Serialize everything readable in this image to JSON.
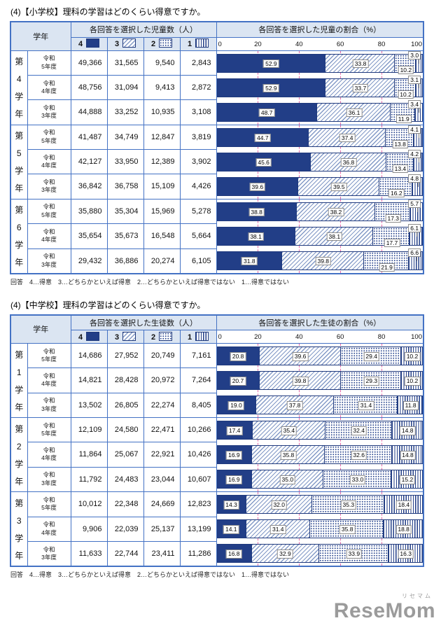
{
  "page": {
    "axis_ticks": [
      "0",
      "20",
      "40",
      "60",
      "80",
      "100"
    ]
  },
  "logo": {
    "kana": "リセマム",
    "text": "ReseMom"
  },
  "colors": {
    "border": "#4472c4",
    "header_bg": "#dbe5f2",
    "navy": "#223e87",
    "gridline": "#e468a8"
  },
  "tables": [
    {
      "title": "(4)【小学校】理科の学習はどのくらい得意ですか。",
      "footnote": "回答　4…得意　3…どちらかといえば得意　2…どちらかといえば得意ではない　1…得意ではない",
      "header": {
        "grade": "学年",
        "counts": "各回答を選択した児童数（人）",
        "percent": "各回答を選択した児童の割合（%）",
        "options": [
          "4",
          "3",
          "2",
          "1"
        ]
      },
      "groups": [
        {
          "grade_chars": [
            "第",
            "4",
            "学",
            "年"
          ],
          "rows": [
            {
              "year": [
                "令和",
                "5年度"
              ],
              "counts": [
                "49,366",
                "31,565",
                "9,540",
                "2,843"
              ],
              "pct": [
                "52.9",
                "33.8",
                "10.2",
                "3.0"
              ]
            },
            {
              "year": [
                "令和",
                "4年度"
              ],
              "counts": [
                "48,756",
                "31,094",
                "9,413",
                "2,872"
              ],
              "pct": [
                "52.9",
                "33.7",
                "10.2",
                "3.1"
              ]
            },
            {
              "year": [
                "令和",
                "3年度"
              ],
              "counts": [
                "44,888",
                "33,252",
                "10,935",
                "3,108"
              ],
              "pct": [
                "48.7",
                "36.1",
                "11.9",
                "3.4"
              ]
            }
          ]
        },
        {
          "grade_chars": [
            "第",
            "5",
            "学",
            "年"
          ],
          "rows": [
            {
              "year": [
                "令和",
                "5年度"
              ],
              "counts": [
                "41,487",
                "34,749",
                "12,847",
                "3,819"
              ],
              "pct": [
                "44.7",
                "37.4",
                "13.8",
                "4.1"
              ]
            },
            {
              "year": [
                "令和",
                "4年度"
              ],
              "counts": [
                "42,127",
                "33,950",
                "12,389",
                "3,902"
              ],
              "pct": [
                "45.6",
                "36.8",
                "13.4",
                "4.2"
              ]
            },
            {
              "year": [
                "令和",
                "3年度"
              ],
              "counts": [
                "36,842",
                "36,758",
                "15,109",
                "4,426"
              ],
              "pct": [
                "39.6",
                "39.5",
                "16.2",
                "4.8"
              ]
            }
          ]
        },
        {
          "grade_chars": [
            "第",
            "6",
            "学",
            "年"
          ],
          "rows": [
            {
              "year": [
                "令和",
                "5年度"
              ],
              "counts": [
                "35,880",
                "35,304",
                "15,969",
                "5,278"
              ],
              "pct": [
                "38.8",
                "38.2",
                "17.3",
                "5.7"
              ]
            },
            {
              "year": [
                "令和",
                "4年度"
              ],
              "counts": [
                "35,654",
                "35,673",
                "16,548",
                "5,664"
              ],
              "pct": [
                "38.1",
                "38.1",
                "17.7",
                "6.1"
              ]
            },
            {
              "year": [
                "令和",
                "3年度"
              ],
              "counts": [
                "29,432",
                "36,886",
                "20,274",
                "6,105"
              ],
              "pct": [
                "31.8",
                "39.8",
                "21.9",
                "6.6"
              ]
            }
          ]
        }
      ]
    },
    {
      "title": "(4)【中学校】理科の学習はどのくらい得意ですか。",
      "footnote": "回答　4…得意　3…どちらかといえば得意　2…どちらかといえば得意ではない　1…得意ではない",
      "header": {
        "grade": "学年",
        "counts": "各回答を選択した生徒数（人）",
        "percent": "各回答を選択した生徒の割合（%）",
        "options": [
          "4",
          "3",
          "2",
          "1"
        ]
      },
      "groups": [
        {
          "grade_chars": [
            "第",
            "1",
            "学",
            "年"
          ],
          "rows": [
            {
              "year": [
                "令和",
                "5年度"
              ],
              "counts": [
                "14,686",
                "27,952",
                "20,749",
                "7,161"
              ],
              "pct": [
                "20.8",
                "39.6",
                "29.4",
                "10.2"
              ]
            },
            {
              "year": [
                "令和",
                "4年度"
              ],
              "counts": [
                "14,821",
                "28,428",
                "20,972",
                "7,264"
              ],
              "pct": [
                "20.7",
                "39.8",
                "29.3",
                "10.2"
              ]
            },
            {
              "year": [
                "令和",
                "3年度"
              ],
              "counts": [
                "13,502",
                "26,805",
                "22,274",
                "8,405"
              ],
              "pct": [
                "19.0",
                "37.8",
                "31.4",
                "11.8"
              ]
            }
          ]
        },
        {
          "grade_chars": [
            "第",
            "2",
            "学",
            "年"
          ],
          "rows": [
            {
              "year": [
                "令和",
                "5年度"
              ],
              "counts": [
                "12,109",
                "24,580",
                "22,471",
                "10,266"
              ],
              "pct": [
                "17.4",
                "35.4",
                "32.4",
                "14.8"
              ]
            },
            {
              "year": [
                "令和",
                "4年度"
              ],
              "counts": [
                "11,864",
                "25,067",
                "22,921",
                "10,426"
              ],
              "pct": [
                "16.9",
                "35.8",
                "32.6",
                "14.8"
              ]
            },
            {
              "year": [
                "令和",
                "3年度"
              ],
              "counts": [
                "11,792",
                "24,483",
                "23,044",
                "10,607"
              ],
              "pct": [
                "16.9",
                "35.0",
                "33.0",
                "15.2"
              ]
            }
          ]
        },
        {
          "grade_chars": [
            "第",
            "3",
            "学",
            "年"
          ],
          "rows": [
            {
              "year": [
                "令和",
                "5年度"
              ],
              "counts": [
                "10,012",
                "22,348",
                "24,669",
                "12,823"
              ],
              "pct": [
                "14.3",
                "32.0",
                "35.3",
                "18.4"
              ]
            },
            {
              "year": [
                "令和",
                "4年度"
              ],
              "counts": [
                "9,906",
                "22,039",
                "25,137",
                "13,199"
              ],
              "pct": [
                "14.1",
                "31.4",
                "35.8",
                "18.8"
              ]
            },
            {
              "year": [
                "令和",
                "3年度"
              ],
              "counts": [
                "11,633",
                "22,744",
                "23,411",
                "11,286"
              ],
              "pct": [
                "16.8",
                "32.9",
                "33.9",
                "16.3"
              ]
            }
          ]
        }
      ]
    }
  ],
  "chart_data": [
    {
      "type": "bar",
      "stacked": true,
      "orientation": "horizontal",
      "title": "(4)【小学校】理科の学習はどのくらい得意ですか。",
      "xlabel": "各回答を選択した児童の割合（%）",
      "xlim": [
        0,
        100
      ],
      "gridlines": [
        20,
        40,
        60,
        80
      ],
      "legend": {
        "4": "得意",
        "3": "どちらかといえば得意",
        "2": "どちらかといえば得意ではない",
        "1": "得意ではない"
      },
      "categories": [
        "第4学年 令和5年度",
        "第4学年 令和4年度",
        "第4学年 令和3年度",
        "第5学年 令和5年度",
        "第5学年 令和4年度",
        "第5学年 令和3年度",
        "第6学年 令和5年度",
        "第6学年 令和4年度",
        "第6学年 令和3年度"
      ],
      "series": [
        {
          "name": "4",
          "values": [
            52.9,
            52.9,
            48.7,
            44.7,
            45.6,
            39.6,
            38.8,
            38.1,
            31.8
          ]
        },
        {
          "name": "3",
          "values": [
            33.8,
            33.7,
            36.1,
            37.4,
            36.8,
            39.5,
            38.2,
            38.1,
            39.8
          ]
        },
        {
          "name": "2",
          "values": [
            10.2,
            10.2,
            11.9,
            13.8,
            13.4,
            16.2,
            17.3,
            17.7,
            21.9
          ]
        },
        {
          "name": "1",
          "values": [
            3.0,
            3.1,
            3.4,
            4.1,
            4.2,
            4.8,
            5.7,
            6.1,
            6.6
          ]
        }
      ]
    },
    {
      "type": "bar",
      "stacked": true,
      "orientation": "horizontal",
      "title": "(4)【中学校】理科の学習はどのくらい得意ですか。",
      "xlabel": "各回答を選択した生徒の割合（%）",
      "xlim": [
        0,
        100
      ],
      "gridlines": [
        20,
        40,
        60,
        80
      ],
      "legend": {
        "4": "得意",
        "3": "どちらかといえば得意",
        "2": "どちらかといえば得意ではない",
        "1": "得意ではない"
      },
      "categories": [
        "第1学年 令和5年度",
        "第1学年 令和4年度",
        "第1学年 令和3年度",
        "第2学年 令和5年度",
        "第2学年 令和4年度",
        "第2学年 令和3年度",
        "第3学年 令和5年度",
        "第3学年 令和4年度",
        "第3学年 令和3年度"
      ],
      "series": [
        {
          "name": "4",
          "values": [
            20.8,
            20.7,
            19.0,
            17.4,
            16.9,
            16.9,
            14.3,
            14.1,
            16.8
          ]
        },
        {
          "name": "3",
          "values": [
            39.6,
            39.8,
            37.8,
            35.4,
            35.8,
            35.0,
            32.0,
            31.4,
            32.9
          ]
        },
        {
          "name": "2",
          "values": [
            29.4,
            29.3,
            31.4,
            32.4,
            32.6,
            33.0,
            35.3,
            35.8,
            33.9
          ]
        },
        {
          "name": "1",
          "values": [
            10.2,
            10.2,
            11.8,
            14.8,
            14.8,
            15.2,
            18.4,
            18.8,
            16.3
          ]
        }
      ]
    }
  ]
}
